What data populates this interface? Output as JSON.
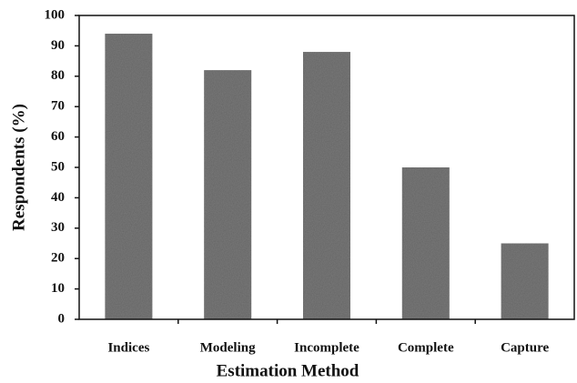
{
  "chart_data": {
    "type": "bar",
    "x_label": "Estimation Method",
    "y_label": "Respondents (%)",
    "categories": [
      "Indices",
      "Modeling",
      "Incomplete",
      "Complete",
      "Capture"
    ],
    "values": [
      94,
      82,
      88,
      50,
      25
    ],
    "color": "#7a7a7a",
    "ylim": [
      0,
      100
    ],
    "yticks": [
      0,
      10,
      20,
      30,
      40,
      50,
      60,
      70,
      80,
      90,
      100
    ],
    "grid": false
  }
}
